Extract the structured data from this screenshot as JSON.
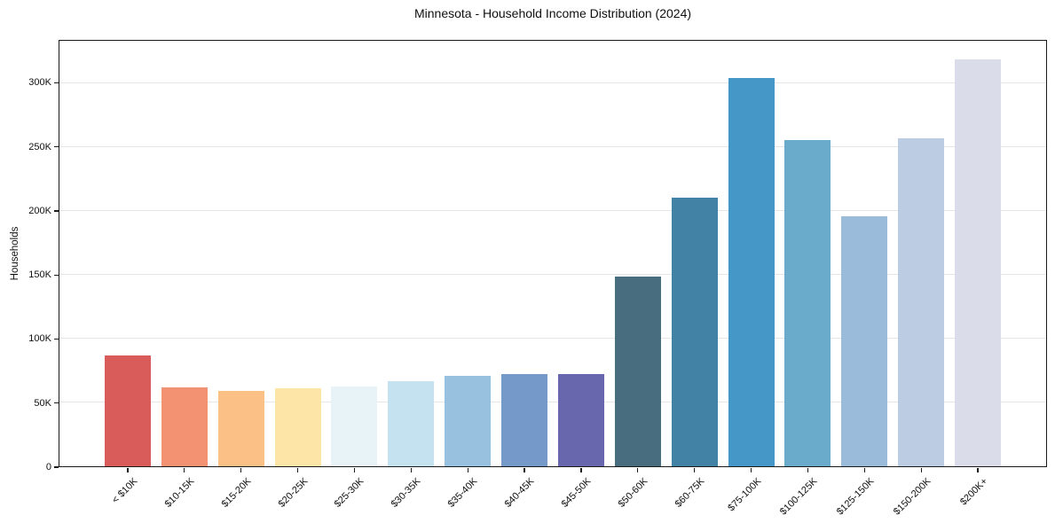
{
  "title": "Minnesota - Household Income Distribution (2024)",
  "chart_data": {
    "type": "bar",
    "title": "Minnesota - Household Income Distribution (2024)",
    "xlabel": "",
    "ylabel": "Households",
    "categories": [
      "< $10K",
      "$10-15K",
      "$15-20K",
      "$20-25K",
      "$25-30K",
      "$30-35K",
      "$35-40K",
      "$40-45K",
      "$45-50K",
      "$50-60K",
      "$60-75K",
      "$75-100K",
      "$100-125K",
      "$125-150K",
      "$150-200K",
      "$200K+"
    ],
    "values": [
      87000,
      62000,
      59000,
      61000,
      62500,
      66500,
      71000,
      72000,
      72500,
      148500,
      210500,
      304000,
      255500,
      196000,
      257000,
      319000
    ],
    "bar_colors": [
      "#d6504d",
      "#f28a68",
      "#fabb7d",
      "#fce3a0",
      "#e6f2f7",
      "#bfe0ee",
      "#8fbcdc",
      "#6a91c5",
      "#5c5ba7",
      "#3a6275",
      "#34789e",
      "#378fc3",
      "#5fa5c7",
      "#93b6d8",
      "#b7c8e1",
      "#d7d9e8"
    ],
    "yticks": [
      0,
      50000,
      100000,
      150000,
      200000,
      250000,
      300000
    ],
    "ytick_labels": [
      "0",
      "50K",
      "100K",
      "150K",
      "200K",
      "250K",
      "300K"
    ],
    "ylim": [
      0,
      333500
    ],
    "grid": true,
    "grid_color": "#e6e6e6",
    "spine_color": "#1a1a1a",
    "legend": null
  }
}
